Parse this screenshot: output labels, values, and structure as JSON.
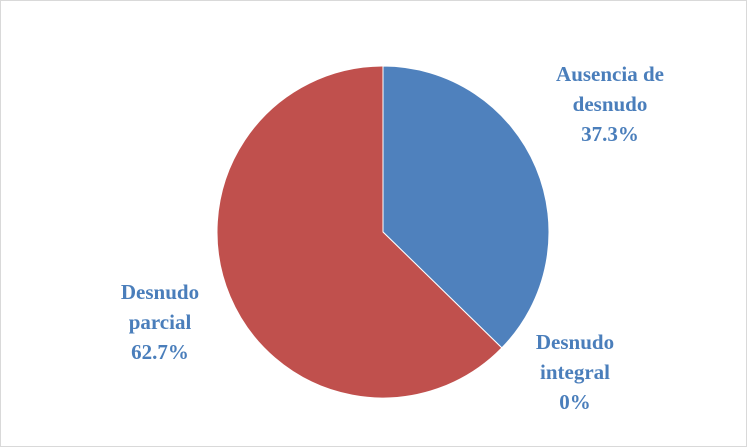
{
  "chart_data": {
    "type": "pie",
    "categories": [
      "Ausencia de desnudo",
      "Desnudo integral",
      "Desnudo parcial"
    ],
    "values": [
      37.3,
      0,
      62.7
    ],
    "value_labels": [
      "37.3%",
      "0%",
      "62.7%"
    ],
    "colors": [
      "#4f81bd",
      "#9bbb59",
      "#c0504d"
    ]
  }
}
